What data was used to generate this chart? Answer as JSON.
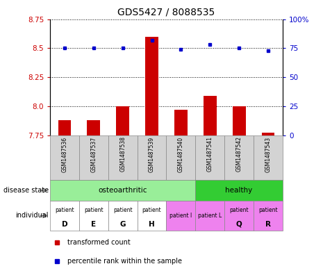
{
  "title": "GDS5427 / 8088535",
  "samples": [
    "GSM1487536",
    "GSM1487537",
    "GSM1487538",
    "GSM1487539",
    "GSM1487540",
    "GSM1487541",
    "GSM1487542",
    "GSM1487543"
  ],
  "transformed_counts": [
    7.88,
    7.88,
    8.0,
    8.6,
    7.97,
    8.09,
    8.0,
    7.77
  ],
  "percentile_ranks": [
    75,
    75,
    75,
    82,
    74,
    78,
    75,
    73
  ],
  "ylim_left": [
    7.75,
    8.75
  ],
  "ylim_right": [
    0,
    100
  ],
  "yticks_left": [
    7.75,
    8.0,
    8.25,
    8.5,
    8.75
  ],
  "yticks_right": [
    0,
    25,
    50,
    75,
    100
  ],
  "disease_state_groups": [
    {
      "label": "osteoarthritic",
      "start": 0,
      "end": 5,
      "color": "#99ee99"
    },
    {
      "label": "healthy",
      "start": 5,
      "end": 8,
      "color": "#33cc33"
    }
  ],
  "indiv_colors": [
    "#ffffff",
    "#ffffff",
    "#ffffff",
    "#ffffff",
    "#ee82ee",
    "#ee82ee",
    "#ee82ee",
    "#ee82ee"
  ],
  "indiv_line1": [
    "patient",
    "patient",
    "patient",
    "patient",
    "patient I",
    "patient L",
    "patient",
    "patient"
  ],
  "indiv_line2": [
    "D",
    "E",
    "G",
    "H",
    "",
    "",
    "Q",
    "R"
  ],
  "bar_color": "#cc0000",
  "dot_color": "#0000cc",
  "bar_bottom": 7.75,
  "background_color": "#ffffff",
  "tick_fontsize": 7.5,
  "title_fontsize": 10,
  "sample_fontsize": 5.5,
  "label_fontsize": 7.5,
  "legend_fontsize": 7
}
